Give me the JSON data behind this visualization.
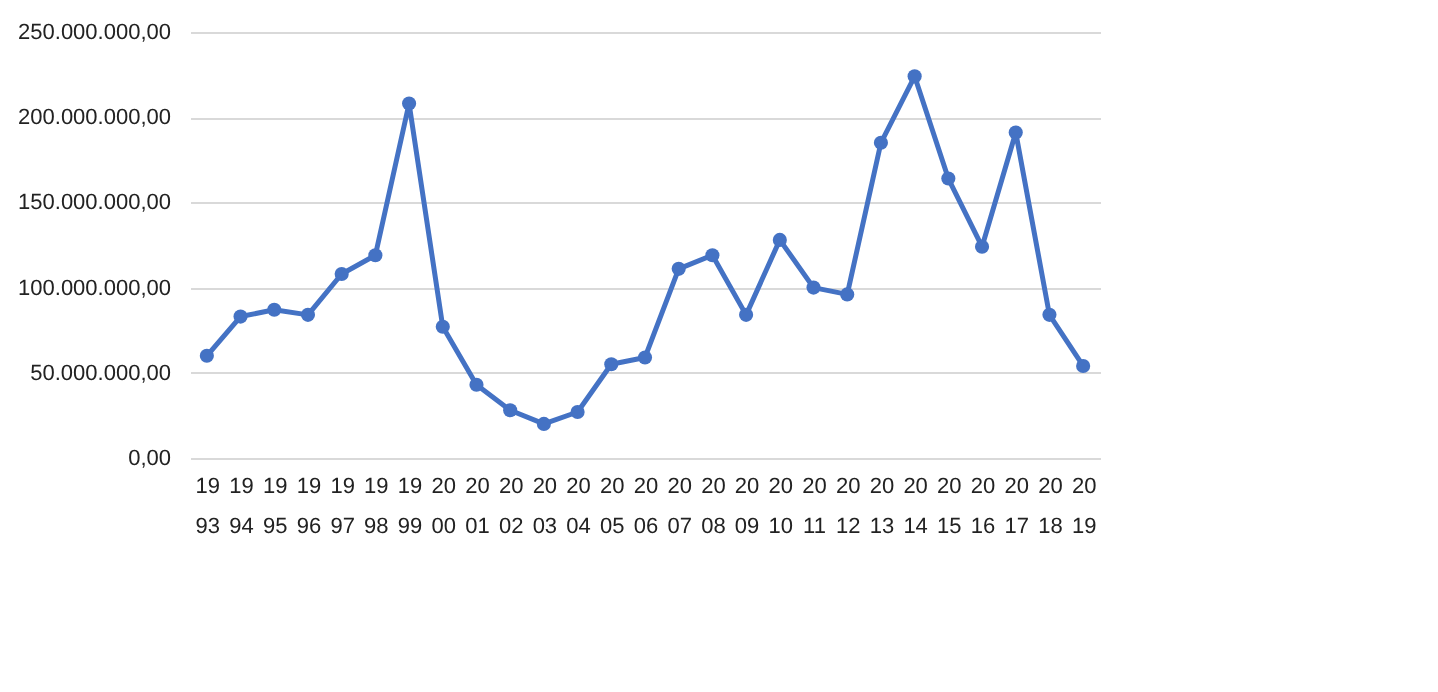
{
  "chart_data": {
    "type": "line",
    "categories": [
      "1993",
      "1994",
      "1995",
      "1996",
      "1997",
      "1998",
      "1999",
      "2000",
      "2001",
      "2002",
      "2003",
      "2004",
      "2005",
      "2006",
      "2007",
      "2008",
      "2009",
      "2010",
      "2011",
      "2012",
      "2013",
      "2014",
      "2015",
      "2016",
      "2017",
      "2018",
      "2019"
    ],
    "series": [
      {
        "color": "#4472c4",
        "values": [
          60000000,
          83000000,
          87000000,
          84000000,
          108000000,
          119000000,
          208000000,
          77000000,
          43000000,
          28000000,
          20000000,
          27000000,
          55000000,
          59000000,
          111000000,
          119000000,
          84000000,
          128000000,
          100000000,
          96000000,
          185000000,
          224000000,
          164000000,
          124000000,
          191000000,
          84000000,
          54000000
        ]
      }
    ],
    "ylim": [
      0,
      250000000
    ],
    "yticks": [
      {
        "value": 0,
        "label": "0,00"
      },
      {
        "value": 50000000,
        "label": "50.000.000,00"
      },
      {
        "value": 100000000,
        "label": "100.000.000,00"
      },
      {
        "value": 150000000,
        "label": "150.000.000,00"
      },
      {
        "value": 200000000,
        "label": "200.000.000,00"
      },
      {
        "value": 250000000,
        "label": "250.000.000,00"
      }
    ],
    "grid": "y",
    "marker": "circle",
    "line_style": "solid"
  }
}
